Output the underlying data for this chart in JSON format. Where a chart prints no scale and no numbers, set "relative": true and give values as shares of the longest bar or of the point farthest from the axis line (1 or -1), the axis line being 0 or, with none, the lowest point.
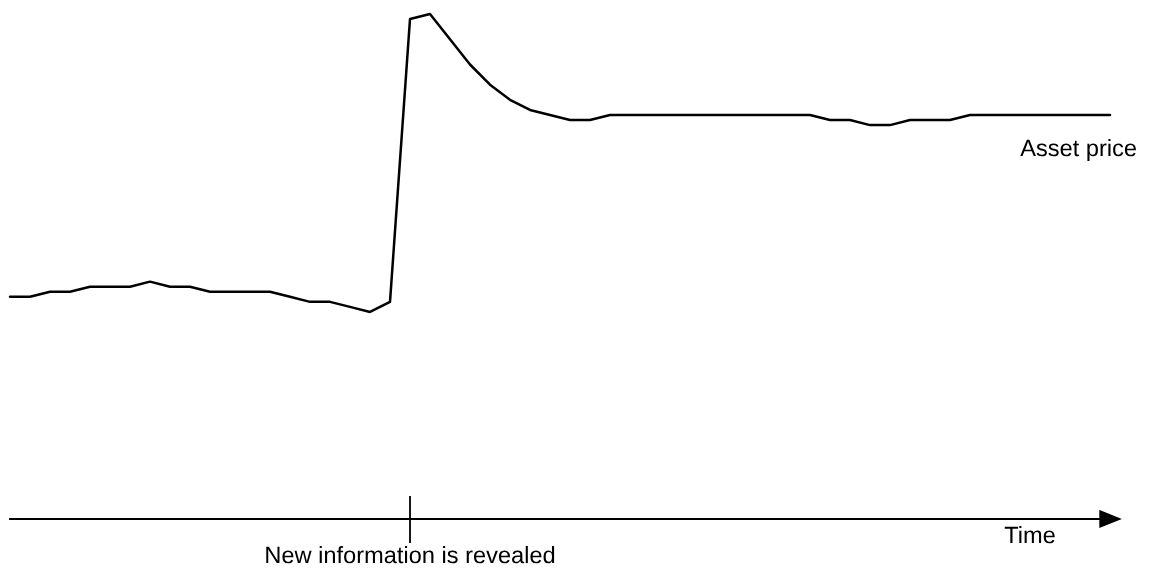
{
  "chart_data": {
    "type": "line",
    "relative": true,
    "marker": "none",
    "line_style": "solid",
    "categories": [
      null,
      null,
      null,
      null,
      null,
      null,
      null,
      null,
      null,
      null,
      null,
      null,
      null,
      null,
      null,
      null,
      null,
      null,
      null,
      null,
      null,
      null,
      null,
      null,
      null,
      null,
      null,
      null,
      null,
      null,
      null,
      null,
      null,
      null,
      null,
      null,
      null,
      null,
      null,
      null,
      null,
      null,
      null,
      null,
      null,
      null,
      null,
      null,
      null,
      null,
      null,
      null,
      null,
      null,
      null,
      null
    ],
    "series": [
      {
        "color": "#000000",
        "values": [
          0.44,
          0.44,
          0.45,
          0.45,
          0.46,
          0.46,
          0.46,
          0.47,
          0.46,
          0.46,
          0.45,
          0.45,
          0.45,
          0.45,
          0.44,
          0.43,
          0.43,
          0.42,
          0.41,
          0.43,
          0.99,
          1.0,
          0.95,
          0.9,
          0.86,
          0.83,
          0.81,
          0.8,
          0.79,
          0.79,
          0.8,
          0.8,
          0.8,
          0.8,
          0.8,
          0.8,
          0.8,
          0.8,
          0.8,
          0.8,
          0.8,
          0.79,
          0.79,
          0.78,
          0.78,
          0.79,
          0.79,
          0.79,
          0.8,
          0.8,
          0.8,
          0.8,
          0.8,
          0.8,
          0.8,
          0.8
        ]
      }
    ],
    "annotations": [
      "Asset price",
      "Time",
      "New information is revealed"
    ]
  }
}
